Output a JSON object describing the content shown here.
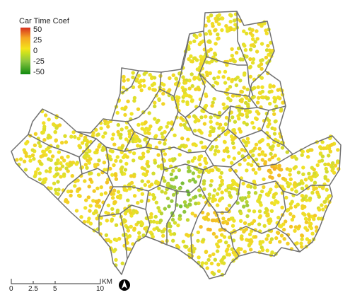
{
  "legend": {
    "title": "Car Time Coef",
    "ticks": [
      "50",
      "25",
      "0",
      "-25",
      "-50"
    ],
    "colors": {
      "high": "#d7301f",
      "mid_high": "#f5a623",
      "zero": "#f4e31b",
      "mid_low": "#8cc63f",
      "low": "#108a10"
    }
  },
  "scalebar": {
    "labels": [
      "0",
      "2.5",
      "5",
      "10"
    ],
    "unit": "KM"
  },
  "north_arrow": "north-arrow-icon",
  "map_style": {
    "boundary_color": "#707070",
    "background": "#ffffff"
  }
}
